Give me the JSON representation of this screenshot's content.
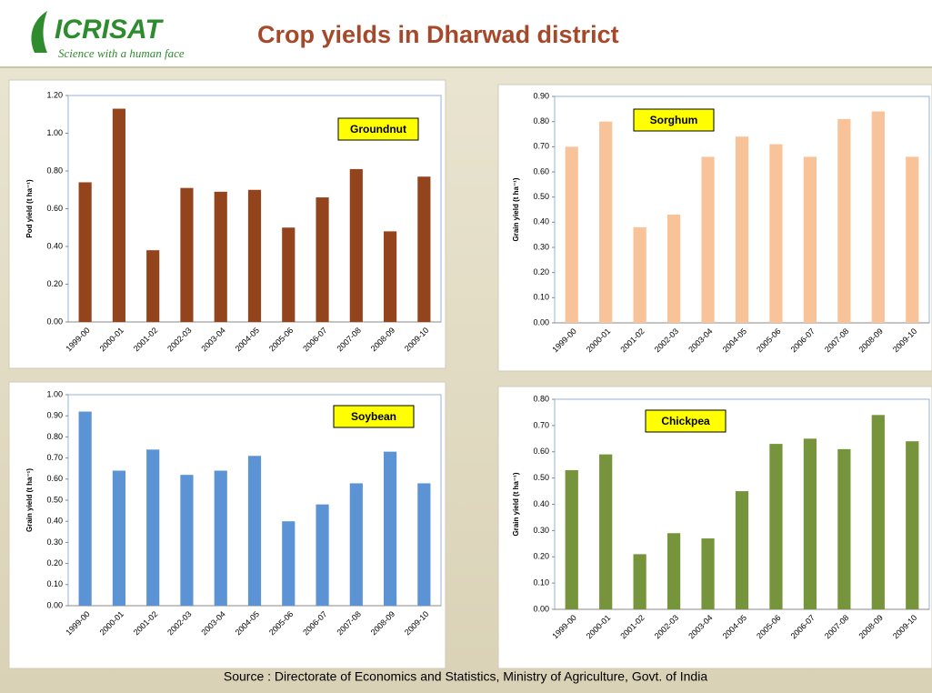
{
  "page": {
    "logo": "ICRISAT",
    "tagline": "Science with a human face",
    "title": "Crop yields in Dharwad district",
    "source": "Source : Directorate of Economics and Statistics, Ministry of Agriculture, Govt. of India"
  },
  "chart_data": [
    {
      "type": "bar",
      "ylabel": "Pod yield (t ha⁻¹)",
      "categories": [
        "1999-00",
        "2000-01",
        "2001-02",
        "2002-03",
        "2003-04",
        "2004-05",
        "2005-06",
        "2006-07",
        "2007-08",
        "2008-09",
        "2009-10"
      ],
      "series": [
        {
          "name": "Groundnut",
          "color": "#94441c",
          "values": [
            0.74,
            1.13,
            0.38,
            0.71,
            0.69,
            0.7,
            0.5,
            0.66,
            0.81,
            0.48,
            0.77
          ]
        }
      ],
      "ylim": [
        0,
        1.2
      ],
      "yticks": [
        {
          "value": 0,
          "label": "0.00"
        },
        {
          "value": 0.2,
          "label": "0.20"
        },
        {
          "value": 0.4,
          "label": "0.40"
        },
        {
          "value": 0.6,
          "label": "0.60"
        },
        {
          "value": 0.8,
          "label": "0.80"
        },
        {
          "value": 1.0,
          "label": "1.00"
        },
        {
          "value": 1.2,
          "label": "1.20"
        }
      ]
    },
    {
      "type": "bar",
      "ylabel": "Grain yield (t ha⁻¹)",
      "categories": [
        "1999-00",
        "2000-01",
        "2001-02",
        "2002-03",
        "2003-04",
        "2004-05",
        "2005-06",
        "2006-07",
        "2007-08",
        "2008-09",
        "2009-10"
      ],
      "series": [
        {
          "name": "Sorghum",
          "color": "#f9c39a",
          "values": [
            0.7,
            0.8,
            0.38,
            0.43,
            0.66,
            0.74,
            0.71,
            0.66,
            0.81,
            0.84,
            0.66
          ]
        }
      ],
      "ylim": [
        0,
        0.9
      ],
      "yticks": [
        {
          "value": 0,
          "label": "0.00"
        },
        {
          "value": 0.1,
          "label": "0.10"
        },
        {
          "value": 0.2,
          "label": "0.20"
        },
        {
          "value": 0.3,
          "label": "0.30"
        },
        {
          "value": 0.4,
          "label": "0.40"
        },
        {
          "value": 0.5,
          "label": "0.50"
        },
        {
          "value": 0.6,
          "label": "0.60"
        },
        {
          "value": 0.7,
          "label": "0.70"
        },
        {
          "value": 0.8,
          "label": "0.80"
        },
        {
          "value": 0.9,
          "label": "0.90"
        }
      ]
    },
    {
      "type": "bar",
      "ylabel": "Grain yield (t ha⁻¹)",
      "categories": [
        "1999-00",
        "2000-01",
        "2001-02",
        "2002-03",
        "2003-04",
        "2004-05",
        "2005-06",
        "2006-07",
        "2007-08",
        "2008-09",
        "2009-10"
      ],
      "series": [
        {
          "name": "Soybean",
          "color": "#5b93d5",
          "values": [
            0.92,
            0.64,
            0.74,
            0.62,
            0.64,
            0.71,
            0.4,
            0.48,
            0.58,
            0.73,
            0.58
          ]
        }
      ],
      "ylim": [
        0,
        1.0
      ],
      "yticks": [
        {
          "value": 0,
          "label": "0.00"
        },
        {
          "value": 0.1,
          "label": "0.10"
        },
        {
          "value": 0.2,
          "label": "0.20"
        },
        {
          "value": 0.3,
          "label": "0.30"
        },
        {
          "value": 0.4,
          "label": "0.40"
        },
        {
          "value": 0.5,
          "label": "0.50"
        },
        {
          "value": 0.6,
          "label": "0.60"
        },
        {
          "value": 0.7,
          "label": "0.70"
        },
        {
          "value": 0.8,
          "label": "0.80"
        },
        {
          "value": 0.9,
          "label": "0.90"
        },
        {
          "value": 1.0,
          "label": "1.00"
        }
      ]
    },
    {
      "type": "bar",
      "ylabel": "Grain yield (t ha⁻¹)",
      "categories": [
        "1999-00",
        "2000-01",
        "2001-02",
        "2002-03",
        "2003-04",
        "2004-05",
        "2005-06",
        "2006-07",
        "2007-08",
        "2008-09",
        "2009-10"
      ],
      "series": [
        {
          "name": "Chickpea",
          "color": "#76943b",
          "values": [
            0.53,
            0.59,
            0.21,
            0.29,
            0.27,
            0.45,
            0.63,
            0.65,
            0.61,
            0.74,
            0.64
          ]
        }
      ],
      "ylim": [
        0,
        0.8
      ],
      "yticks": [
        {
          "value": 0,
          "label": "0.00"
        },
        {
          "value": 0.1,
          "label": "0.10"
        },
        {
          "value": 0.2,
          "label": "0.20"
        },
        {
          "value": 0.3,
          "label": "0.30"
        },
        {
          "value": 0.4,
          "label": "0.40"
        },
        {
          "value": 0.5,
          "label": "0.50"
        },
        {
          "value": 0.6,
          "label": "0.60"
        },
        {
          "value": 0.7,
          "label": "0.70"
        },
        {
          "value": 0.8,
          "label": "0.80"
        }
      ]
    }
  ]
}
